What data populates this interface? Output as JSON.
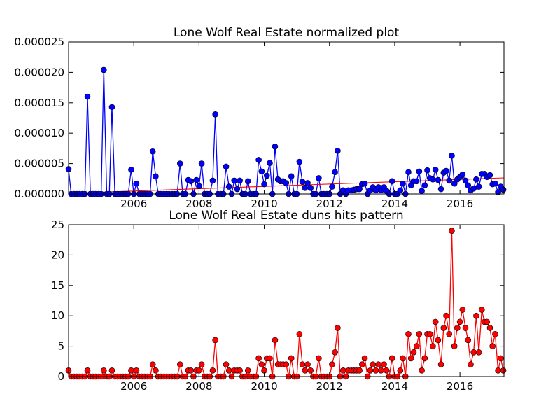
{
  "chart_data": [
    {
      "type": "line",
      "title": "Lone Wolf Real Estate normalized plot",
      "color": "#0000ff",
      "marker": "circle",
      "x": [
        2004.0,
        2004.08,
        2004.17,
        2004.25,
        2004.33,
        2004.42,
        2004.5,
        2004.58,
        2004.67,
        2004.75,
        2004.83,
        2004.92,
        2005.0,
        2005.08,
        2005.17,
        2005.25,
        2005.33,
        2005.42,
        2005.5,
        2005.58,
        2005.67,
        2005.75,
        2005.83,
        2005.92,
        2006.0,
        2006.08,
        2006.17,
        2006.25,
        2006.33,
        2006.42,
        2006.5,
        2006.58,
        2006.67,
        2006.75,
        2006.83,
        2006.92,
        2007.0,
        2007.08,
        2007.17,
        2007.25,
        2007.33,
        2007.42,
        2007.5,
        2007.58,
        2007.67,
        2007.75,
        2007.83,
        2007.92,
        2008.0,
        2008.08,
        2008.17,
        2008.25,
        2008.33,
        2008.42,
        2008.5,
        2008.58,
        2008.67,
        2008.75,
        2008.83,
        2008.92,
        2009.0,
        2009.08,
        2009.17,
        2009.25,
        2009.33,
        2009.42,
        2009.5,
        2009.58,
        2009.67,
        2009.75,
        2009.83,
        2009.92,
        2010.0,
        2010.08,
        2010.17,
        2010.25,
        2010.33,
        2010.42,
        2010.5,
        2010.58,
        2010.67,
        2010.75,
        2010.83,
        2010.92,
        2011.0,
        2011.08,
        2011.17,
        2011.25,
        2011.33,
        2011.42,
        2011.5,
        2011.58,
        2011.67,
        2011.75,
        2011.83,
        2011.92,
        2012.0,
        2012.08,
        2012.17,
        2012.25,
        2012.33,
        2012.42,
        2012.5,
        2012.58,
        2012.67,
        2012.75,
        2012.83,
        2012.92,
        2013.0,
        2013.08,
        2013.17,
        2013.25,
        2013.33,
        2013.42,
        2013.5,
        2013.58,
        2013.67,
        2013.75,
        2013.83,
        2013.92,
        2014.0,
        2014.08,
        2014.17,
        2014.25,
        2014.33,
        2014.42,
        2014.5,
        2014.58,
        2014.67,
        2014.75,
        2014.83,
        2014.92,
        2015.0,
        2015.08,
        2015.17,
        2015.25,
        2015.33,
        2015.42,
        2015.5,
        2015.58,
        2015.67,
        2015.75,
        2015.83,
        2015.92,
        2016.0,
        2016.08,
        2016.17,
        2016.25,
        2016.33,
        2016.42,
        2016.5,
        2016.58,
        2016.67,
        2016.75,
        2016.83,
        2016.92,
        2017.0,
        2017.08,
        2017.17,
        2017.25,
        2017.33
      ],
      "values": [
        4.1e-06,
        0,
        0,
        0,
        0,
        0,
        0,
        1.6e-05,
        0,
        0,
        0,
        0,
        0,
        2.04e-05,
        0,
        0,
        1.43e-05,
        0,
        0,
        0,
        0,
        0,
        0,
        4e-06,
        0,
        1.7e-06,
        0,
        0,
        0,
        0,
        0,
        7e-06,
        2.9e-06,
        0,
        0,
        0,
        0,
        0,
        0,
        0,
        0,
        5e-06,
        0,
        0,
        2.3e-06,
        2.1e-06,
        0,
        2.3e-06,
        1.3e-06,
        5e-06,
        0,
        0,
        0,
        2.2e-06,
        1.31e-05,
        0,
        0,
        0,
        4.5e-06,
        1.2e-06,
        0,
        2.2e-06,
        8e-07,
        2.2e-06,
        0,
        0,
        2.1e-06,
        0,
        0,
        0,
        5.6e-06,
        3.7e-06,
        1.6e-06,
        3e-06,
        5.1e-06,
        0,
        7.8e-06,
        2.4e-06,
        2.1e-06,
        2.1e-06,
        1.8e-06,
        0,
        2.9e-06,
        0,
        0,
        5.3e-06,
        2e-06,
        1e-06,
        1.8e-06,
        1e-06,
        0,
        0,
        2.6e-06,
        0,
        0,
        0,
        0,
        1.2e-06,
        3.6e-06,
        7.1e-06,
        0,
        6e-07,
        0,
        6e-07,
        6e-07,
        7e-07,
        8e-07,
        8e-07,
        1.6e-06,
        1.7e-06,
        0,
        6e-07,
        1.1e-06,
        6e-07,
        1.1e-06,
        6e-07,
        1.1e-06,
        5e-07,
        0,
        2.1e-06,
        0,
        0,
        6e-07,
        1.7e-06,
        0,
        3.6e-06,
        1.4e-06,
        2.1e-06,
        2.1e-06,
        3.7e-06,
        5e-07,
        1.4e-06,
        3.9e-06,
        2.6e-06,
        2.4e-06,
        4e-06,
        2.3e-06,
        8e-07,
        3.5e-06,
        3.8e-06,
        2.2e-06,
        6.3e-06,
        1.7e-06,
        2.4e-06,
        2.8e-06,
        3.2e-06,
        2.2e-06,
        1.4e-06,
        6e-07,
        9e-07,
        2.4e-06,
        1.2e-06,
        3.3e-06,
        3.3e-06,
        2.8e-06,
        3.1e-06,
        1.6e-06,
        1.7e-06,
        3e-07,
        1.2e-06,
        7e-07
      ],
      "trend": {
        "x": [
          2004.0,
          2017.35
        ],
        "values": [
          1e-07,
          2.65e-06
        ],
        "color": "#ff0000"
      },
      "xlim": [
        2004.0,
        2017.35
      ],
      "xticks": [
        2006,
        2008,
        2010,
        2012,
        2014,
        2016
      ],
      "ylim": [
        0,
        2.5e-05
      ],
      "yticks": [
        {
          "value": 0,
          "label": "0.000000"
        },
        {
          "value": 5e-06,
          "label": "0.000005"
        },
        {
          "value": 1e-05,
          "label": "0.000010"
        },
        {
          "value": 1.5e-05,
          "label": "0.000015"
        },
        {
          "value": 2e-05,
          "label": "0.000020"
        },
        {
          "value": 2.5e-05,
          "label": "0.000025"
        }
      ]
    },
    {
      "type": "line",
      "title": "Lone Wolf Real Estate duns hits pattern",
      "color": "#ff0000",
      "marker": "circle",
      "x": [
        2004.0,
        2004.08,
        2004.17,
        2004.25,
        2004.33,
        2004.42,
        2004.5,
        2004.58,
        2004.67,
        2004.75,
        2004.83,
        2004.92,
        2005.0,
        2005.08,
        2005.17,
        2005.25,
        2005.33,
        2005.42,
        2005.5,
        2005.58,
        2005.67,
        2005.75,
        2005.83,
        2005.92,
        2006.0,
        2006.08,
        2006.17,
        2006.25,
        2006.33,
        2006.42,
        2006.5,
        2006.58,
        2006.67,
        2006.75,
        2006.83,
        2006.92,
        2007.0,
        2007.08,
        2007.17,
        2007.25,
        2007.33,
        2007.42,
        2007.5,
        2007.58,
        2007.67,
        2007.75,
        2007.83,
        2007.92,
        2008.0,
        2008.08,
        2008.17,
        2008.25,
        2008.33,
        2008.42,
        2008.5,
        2008.58,
        2008.67,
        2008.75,
        2008.83,
        2008.92,
        2009.0,
        2009.08,
        2009.17,
        2009.25,
        2009.33,
        2009.42,
        2009.5,
        2009.58,
        2009.67,
        2009.75,
        2009.83,
        2009.92,
        2010.0,
        2010.08,
        2010.17,
        2010.25,
        2010.33,
        2010.42,
        2010.5,
        2010.58,
        2010.67,
        2010.75,
        2010.83,
        2010.92,
        2011.0,
        2011.08,
        2011.17,
        2011.25,
        2011.33,
        2011.42,
        2011.5,
        2011.58,
        2011.67,
        2011.75,
        2011.83,
        2011.92,
        2012.0,
        2012.08,
        2012.17,
        2012.25,
        2012.33,
        2012.42,
        2012.5,
        2012.58,
        2012.67,
        2012.75,
        2012.83,
        2012.92,
        2013.0,
        2013.08,
        2013.17,
        2013.25,
        2013.33,
        2013.42,
        2013.5,
        2013.58,
        2013.67,
        2013.75,
        2013.83,
        2013.92,
        2014.0,
        2014.08,
        2014.17,
        2014.25,
        2014.33,
        2014.42,
        2014.5,
        2014.58,
        2014.67,
        2014.75,
        2014.83,
        2014.92,
        2015.0,
        2015.08,
        2015.17,
        2015.25,
        2015.33,
        2015.42,
        2015.5,
        2015.58,
        2015.67,
        2015.75,
        2015.83,
        2015.92,
        2016.0,
        2016.08,
        2016.17,
        2016.25,
        2016.33,
        2016.42,
        2016.5,
        2016.58,
        2016.67,
        2016.75,
        2016.83,
        2016.92,
        2017.0,
        2017.08,
        2017.17,
        2017.25,
        2017.33
      ],
      "values": [
        1,
        0,
        0,
        0,
        0,
        0,
        0,
        1,
        0,
        0,
        0,
        0,
        0,
        1,
        0,
        0,
        1,
        0,
        0,
        0,
        0,
        0,
        0,
        1,
        0,
        1,
        0,
        0,
        0,
        0,
        0,
        2,
        1,
        0,
        0,
        0,
        0,
        0,
        0,
        0,
        0,
        2,
        0,
        0,
        1,
        1,
        0,
        1,
        1,
        2,
        0,
        0,
        0,
        1,
        6,
        0,
        0,
        0,
        2,
        1,
        0,
        1,
        1,
        1,
        0,
        0,
        1,
        0,
        0,
        0,
        3,
        2,
        1,
        3,
        3,
        0,
        6,
        2,
        2,
        2,
        2,
        0,
        3,
        0,
        0,
        7,
        2,
        1,
        2,
        1,
        0,
        0,
        3,
        0,
        0,
        0,
        0,
        2,
        4,
        8,
        0,
        1,
        0,
        1,
        1,
        1,
        1,
        1,
        2,
        3,
        0,
        1,
        2,
        1,
        2,
        1,
        2,
        1,
        0,
        3,
        0,
        0,
        1,
        3,
        0,
        7,
        3,
        4,
        5,
        7,
        1,
        3,
        7,
        7,
        5,
        9,
        6,
        2,
        8,
        10,
        7,
        24,
        5,
        8,
        9,
        11,
        8,
        6,
        2,
        4,
        10,
        4,
        11,
        9,
        9,
        8,
        5,
        7,
        1,
        3,
        1
      ],
      "xlim": [
        2004.0,
        2017.35
      ],
      "xticks": [
        2006,
        2008,
        2010,
        2012,
        2014,
        2016
      ],
      "ylim": [
        0,
        25
      ],
      "yticks": [
        0,
        5,
        10,
        15,
        20,
        25
      ]
    }
  ]
}
